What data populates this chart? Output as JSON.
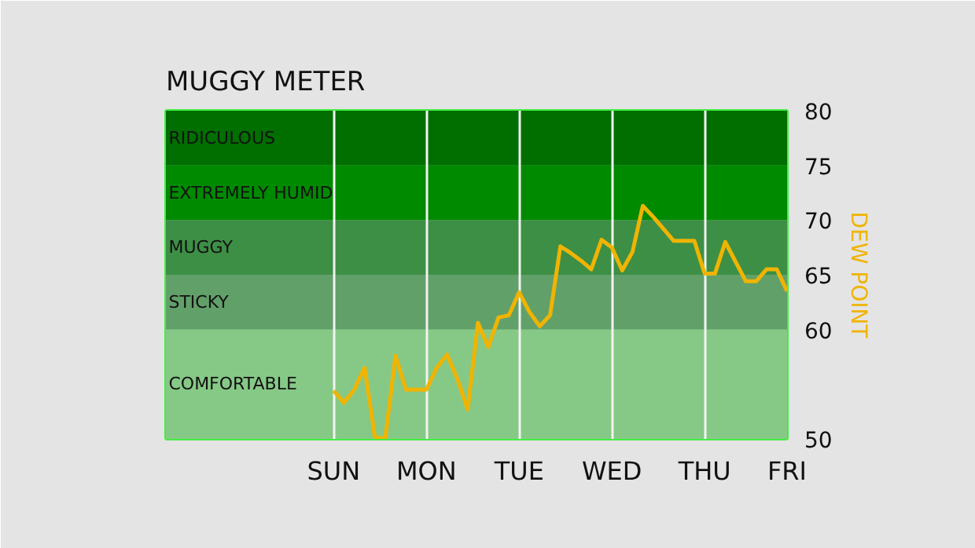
{
  "chart_data": {
    "type": "line",
    "title": "MUGGY METER",
    "ylabel": "DEW POINT",
    "categories": [
      "SUN",
      null,
      null,
      null,
      null,
      null,
      null,
      null,
      null,
      "MON",
      null,
      null,
      null,
      null,
      null,
      null,
      null,
      null,
      "TUE",
      null,
      null,
      null,
      null,
      null,
      null,
      null,
      null,
      "WED",
      null,
      null,
      null,
      null,
      null,
      null,
      null,
      null,
      "THU",
      null,
      null,
      null,
      null,
      null,
      null,
      null,
      "FRI"
    ],
    "ylim": [
      50,
      80
    ],
    "yticks": [
      50,
      60,
      65,
      70,
      75,
      80
    ],
    "grid": "x",
    "bands": [
      {
        "axis": "y",
        "from": 75,
        "to": 80,
        "label": "RIDICULOUS",
        "color": "#006f00"
      },
      {
        "axis": "y",
        "from": 70,
        "to": 75,
        "label": "EXTREMELY HUMID",
        "color": "#008a00"
      },
      {
        "axis": "y",
        "from": 65,
        "to": 70,
        "label": "MUGGY",
        "color": "#3d8f45"
      },
      {
        "axis": "y",
        "from": 60,
        "to": 65,
        "label": "STICKY",
        "color": "#62a06a"
      },
      {
        "axis": "y",
        "from": 50,
        "to": 60,
        "label": "COMFORTABLE",
        "color": "#86c986"
      }
    ],
    "series": [
      {
        "color": "#f0b400",
        "values": [
          54.4,
          53.3,
          54.5,
          56.5,
          50.2,
          50.0,
          57.6,
          54.5,
          54.5,
          54.5,
          56.5,
          57.7,
          55.5,
          52.7,
          60.6,
          58.4,
          61.1,
          61.3,
          63.4,
          61.6,
          60.3,
          61.3,
          67.6,
          67.0,
          66.3,
          65.5,
          68.2,
          67.5,
          65.4,
          67.1,
          71.3,
          70.3,
          69.2,
          68.1,
          68.1,
          68.1,
          65.1,
          65.1,
          68.0,
          66.2,
          64.4,
          64.4,
          65.5,
          65.5,
          63.5
        ]
      }
    ]
  }
}
